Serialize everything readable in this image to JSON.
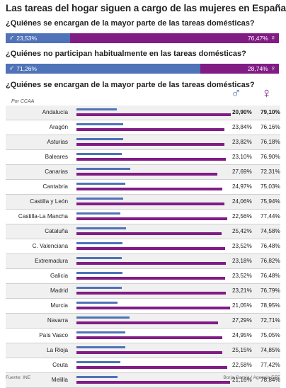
{
  "title": "Las tareas del hogar siguen a cargo de las mujeres en España",
  "symbols": {
    "male": "♂",
    "female": "♀"
  },
  "colors": {
    "male": "#4f72b8",
    "female": "#811c85"
  },
  "footer": {
    "source": "Fuente: INE",
    "credit": "Borja García / Agencia EFE"
  },
  "chart_data": [
    {
      "type": "bar",
      "title": "¿Quiénes se encargan de la mayor parte de las tareas domésticas?",
      "series": [
        {
          "name": "♂",
          "values": [
            23.53
          ],
          "label": "23,53%"
        },
        {
          "name": "♀",
          "values": [
            76.47
          ],
          "label": "76,47%"
        }
      ]
    },
    {
      "type": "bar",
      "title": "¿Quiénes no participan habitualmente en las tareas domésticas?",
      "series": [
        {
          "name": "♂",
          "values": [
            71.26
          ],
          "label": "71,26%"
        },
        {
          "name": "♀",
          "values": [
            28.74
          ],
          "label": "28,74%"
        }
      ]
    },
    {
      "type": "bar",
      "title": "¿Quiénes se encargan de la mayor parte de las tareas domésticas?",
      "subtitle": "Por CCAA",
      "categories": [
        "Andalucía",
        "Aragón",
        "Asturias",
        "Baleares",
        "Canarias",
        "Cantabria",
        "Castilla y León",
        "Castilla-La Mancha",
        "Cataluña",
        "C. Valenciana",
        "Extremadura",
        "Galicia",
        "Madrid",
        "Murcia",
        "Navarra",
        "País Vasco",
        "La Rioja",
        "Ceuta",
        "Melilla"
      ],
      "series": [
        {
          "name": "♂",
          "values": [
            20.9,
            23.84,
            23.82,
            23.1,
            27.69,
            24.97,
            24.06,
            22.56,
            25.42,
            23.52,
            23.18,
            23.52,
            23.21,
            21.05,
            27.29,
            24.95,
            25.15,
            22.58,
            21.16
          ],
          "labels": [
            "20,90%",
            "23,84%",
            "23,82%",
            "23,10%",
            "27,69%",
            "24,97%",
            "24,06%",
            "22,56%",
            "25,42%",
            "23,52%",
            "23,18%",
            "23,52%",
            "23,21%",
            "21,05%",
            "27,29%",
            "24,95%",
            "25,15%",
            "22,58%",
            "21,16%"
          ]
        },
        {
          "name": "♀",
          "values": [
            79.1,
            76.16,
            76.18,
            76.9,
            72.31,
            75.03,
            75.94,
            77.44,
            74.58,
            76.48,
            76.82,
            76.48,
            76.79,
            78.95,
            72.71,
            75.05,
            74.85,
            77.42,
            78.84
          ],
          "labels": [
            "79,10%",
            "76,16%",
            "76,18%",
            "76,90%",
            "72,31%",
            "75,03%",
            "75,94%",
            "77,44%",
            "74,58%",
            "76,48%",
            "76,82%",
            "76,48%",
            "76,79%",
            "78,95%",
            "72,71%",
            "75,05%",
            "74,85%",
            "77,42%",
            "78,84%"
          ]
        }
      ],
      "highlight": "Andalucía"
    }
  ]
}
